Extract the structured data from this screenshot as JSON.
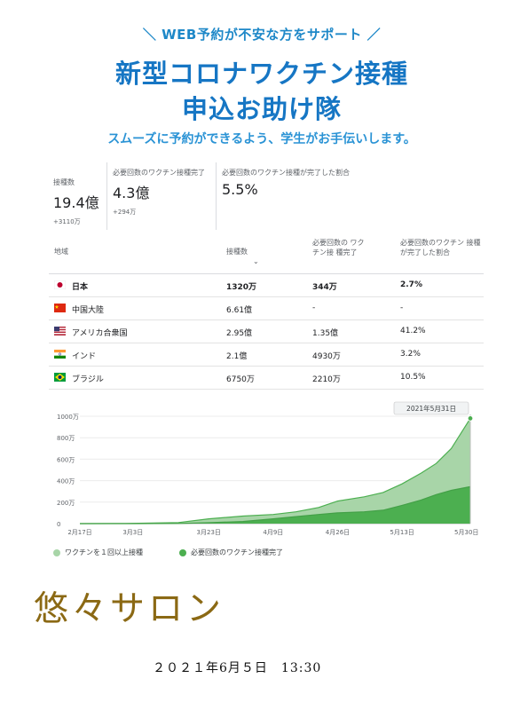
{
  "banner": {
    "tagline": "＼ WEB予約が不安な方をサポート ／",
    "title_line1": "新型コロナワクチン接種",
    "title_line2": "申込お助け隊",
    "subtitle": "スムーズに予約ができるよう、学生がお手伝いします。"
  },
  "stats": [
    {
      "label": "接種数",
      "value": "19.4億",
      "delta": "+3110万"
    },
    {
      "label": "必要回数のワクチン接種完了",
      "value": "4.3億",
      "delta": "+294万"
    },
    {
      "label": "必要回数のワクチン接種が完了した割合",
      "value": "5.5%",
      "delta": ""
    }
  ],
  "table": {
    "headers": {
      "region": "地域",
      "doses": "接種数",
      "sort": "⌄",
      "complete": "必要回数の ワクチン接 種完了",
      "percent": "必要回数のワクチン 接種が完了した割合"
    },
    "rows": [
      {
        "flag": "jp",
        "region": "日本",
        "doses": "1320万",
        "complete": "344万",
        "percent": "2.7%",
        "bold": true
      },
      {
        "flag": "cn",
        "region": "中国大陸",
        "doses": "6.61億",
        "complete": "-",
        "percent": "-",
        "bold": false
      },
      {
        "flag": "us",
        "region": "アメリカ合衆国",
        "doses": "2.95億",
        "complete": "1.35億",
        "percent": "41.2%",
        "bold": false
      },
      {
        "flag": "in",
        "region": "インド",
        "doses": "2.1億",
        "complete": "4930万",
        "percent": "3.2%",
        "bold": false
      },
      {
        "flag": "br",
        "region": "ブラジル",
        "doses": "6750万",
        "complete": "2210万",
        "percent": "10.5%",
        "bold": false
      }
    ]
  },
  "chart_data": {
    "type": "area",
    "ytick_labels": [
      "0",
      "200万",
      "400万",
      "600万",
      "800万",
      "1000万"
    ],
    "ylim": [
      0,
      10000000
    ],
    "ytick_values": [
      0,
      2000000,
      4000000,
      6000000,
      8000000,
      10000000
    ],
    "x_range": [
      "2021-02-17",
      "2021-05-31"
    ],
    "xtick_labels": [
      "2月17日",
      "3月3日",
      "3月23日",
      "4月9日",
      "4月26日",
      "5月13日",
      "5月30日"
    ],
    "xtick_values": [
      "2021-02-17",
      "2021-03-03",
      "2021-03-23",
      "2021-04-09",
      "2021-04-26",
      "2021-05-13",
      "2021-05-30"
    ],
    "tooltip": "2021年5月31日",
    "series": [
      {
        "name": "ワクチンを１回以上接種",
        "color": "#a8d5a8",
        "line_color": "#4caf50",
        "points": [
          [
            "2021-02-17",
            0
          ],
          [
            "2021-03-01",
            20000
          ],
          [
            "2021-03-15",
            100000
          ],
          [
            "2021-03-23",
            450000
          ],
          [
            "2021-04-01",
            700000
          ],
          [
            "2021-04-09",
            850000
          ],
          [
            "2021-04-15",
            1100000
          ],
          [
            "2021-04-21",
            1500000
          ],
          [
            "2021-04-26",
            2100000
          ],
          [
            "2021-05-03",
            2500000
          ],
          [
            "2021-05-08",
            2900000
          ],
          [
            "2021-05-13",
            3700000
          ],
          [
            "2021-05-18",
            4700000
          ],
          [
            "2021-05-22",
            5600000
          ],
          [
            "2021-05-26",
            7000000
          ],
          [
            "2021-05-31",
            9800000
          ]
        ]
      },
      {
        "name": "必要回数のワクチン接種完了",
        "color": "#4caf50",
        "line_color": "#43a047",
        "points": [
          [
            "2021-02-17",
            0
          ],
          [
            "2021-03-03",
            0
          ],
          [
            "2021-03-15",
            20000
          ],
          [
            "2021-03-23",
            80000
          ],
          [
            "2021-04-01",
            200000
          ],
          [
            "2021-04-09",
            450000
          ],
          [
            "2021-04-15",
            650000
          ],
          [
            "2021-04-21",
            850000
          ],
          [
            "2021-04-26",
            1000000
          ],
          [
            "2021-05-03",
            1100000
          ],
          [
            "2021-05-08",
            1250000
          ],
          [
            "2021-05-13",
            1700000
          ],
          [
            "2021-05-18",
            2200000
          ],
          [
            "2021-05-22",
            2700000
          ],
          [
            "2021-05-26",
            3100000
          ],
          [
            "2021-05-31",
            3440000
          ]
        ]
      }
    ]
  },
  "footer": {
    "salon": "悠々サロン",
    "datetime": "２０２１年6月５日　13:30"
  }
}
